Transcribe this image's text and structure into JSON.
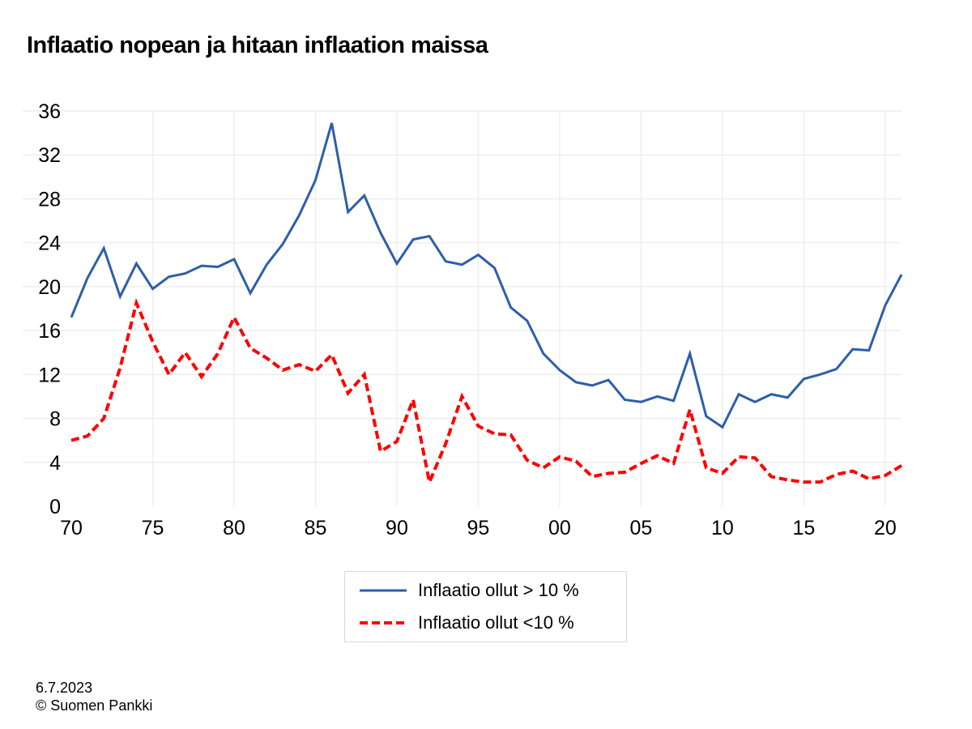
{
  "chart_data": {
    "type": "line",
    "title": "Inflaatio nopean ja hitaan inflaation maissa",
    "x": [
      1970,
      1971,
      1972,
      1973,
      1974,
      1975,
      1976,
      1977,
      1978,
      1979,
      1980,
      1981,
      1982,
      1983,
      1984,
      1985,
      1986,
      1987,
      1988,
      1989,
      1990,
      1991,
      1992,
      1993,
      1994,
      1995,
      1996,
      1997,
      1998,
      1999,
      2000,
      2001,
      2002,
      2003,
      2004,
      2005,
      2006,
      2007,
      2008,
      2009,
      2010,
      2011,
      2012,
      2013,
      2014,
      2015,
      2016,
      2017,
      2018,
      2019,
      2020,
      2021
    ],
    "x_tick_values": [
      1970,
      1975,
      1980,
      1985,
      1990,
      1995,
      2000,
      2005,
      2010,
      2015,
      2020
    ],
    "x_tick_labels": [
      "70",
      "75",
      "80",
      "85",
      "90",
      "95",
      "00",
      "05",
      "10",
      "15",
      "20"
    ],
    "y_ticks": [
      0,
      4,
      8,
      12,
      16,
      20,
      24,
      28,
      32,
      36
    ],
    "ylim": [
      0,
      36
    ],
    "xlim": [
      1970,
      2021
    ],
    "grid": true,
    "legend_placement": "bottom-center",
    "series": [
      {
        "name": "Inflaatio ollut > 10 %",
        "color": "#2E5EAA",
        "style": "solid",
        "values": [
          17.2,
          20.8,
          23.5,
          19.1,
          22.1,
          19.8,
          20.9,
          21.2,
          21.9,
          21.8,
          22.5,
          19.4,
          22.0,
          23.9,
          26.5,
          29.7,
          34.9,
          26.8,
          28.3,
          24.9,
          22.1,
          24.3,
          24.6,
          22.3,
          22.0,
          22.9,
          21.7,
          18.1,
          16.9,
          13.9,
          12.4,
          11.3,
          11.0,
          11.5,
          9.7,
          9.5,
          10.0,
          9.6,
          13.9,
          8.2,
          7.2,
          10.2,
          9.5,
          10.2,
          9.9,
          11.6,
          12.0,
          12.5,
          14.3,
          14.2,
          18.3,
          21.1
        ]
      },
      {
        "name": "Inflaatio ollut <10 %",
        "color": "#FF0000",
        "style": "dashed",
        "values": [
          6.0,
          6.4,
          8.0,
          12.6,
          18.5,
          15.0,
          12.0,
          14.0,
          11.8,
          13.9,
          17.2,
          14.4,
          13.5,
          12.4,
          12.9,
          12.3,
          13.8,
          10.3,
          12.0,
          5.0,
          5.9,
          9.7,
          2.2,
          5.7,
          10.0,
          7.3,
          6.6,
          6.5,
          4.2,
          3.5,
          4.5,
          4.1,
          2.7,
          3.0,
          3.1,
          3.9,
          4.6,
          3.9,
          8.8,
          3.5,
          3.0,
          4.5,
          4.4,
          2.7,
          2.4,
          2.2,
          2.2,
          2.9,
          3.2,
          2.5,
          2.8,
          3.7
        ]
      }
    ]
  },
  "footer": {
    "date": "6.7.2023",
    "source": "© Suomen Pankki"
  }
}
